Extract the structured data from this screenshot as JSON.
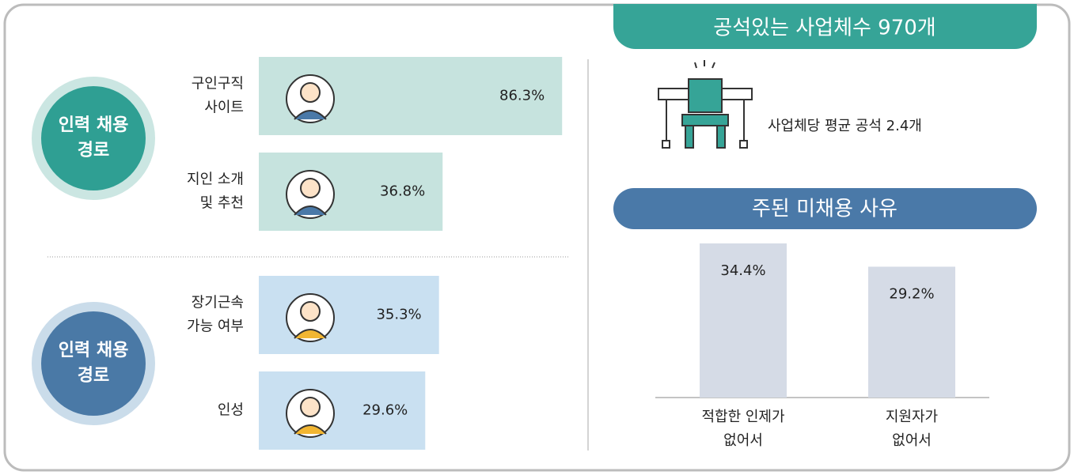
{
  "chart_data": [
    {
      "type": "hbar",
      "title": [
        "인력 채용",
        "경로"
      ],
      "color": "#c6e3de",
      "badge_color": "#2f9f93",
      "ring_color": "#cbe6e2",
      "categories": [
        [
          "구인구직",
          "사이트"
        ],
        [
          "지인 소개",
          "및 추천"
        ]
      ],
      "values": [
        86.3,
        36.8
      ],
      "value_labels": [
        "86.3%",
        "36.8%"
      ]
    },
    {
      "type": "hbar",
      "title": [
        "인력 채용",
        "경로"
      ],
      "color": "#c9e0f1",
      "badge_color": "#4a79a6",
      "ring_color": "#cadcea",
      "categories": [
        [
          "장기근속",
          "가능 여부"
        ],
        [
          "인성"
        ]
      ],
      "values": [
        35.3,
        29.6
      ],
      "value_labels": [
        "35.3%",
        "29.6%"
      ]
    },
    {
      "type": "bar",
      "title": "주된 미채용 사유",
      "color": "#d5dbe6",
      "header_color": "#4a79a8",
      "categories": [
        [
          "적합한 인제가",
          "없어서"
        ],
        [
          "지원자가",
          "없어서"
        ]
      ],
      "values": [
        34.4,
        29.2
      ],
      "value_labels": [
        "34.4%",
        "29.2%"
      ]
    }
  ],
  "banner": {
    "title": "공석있는 사업체수 970개",
    "note": "사업체당 평균 공석 2.4개"
  }
}
